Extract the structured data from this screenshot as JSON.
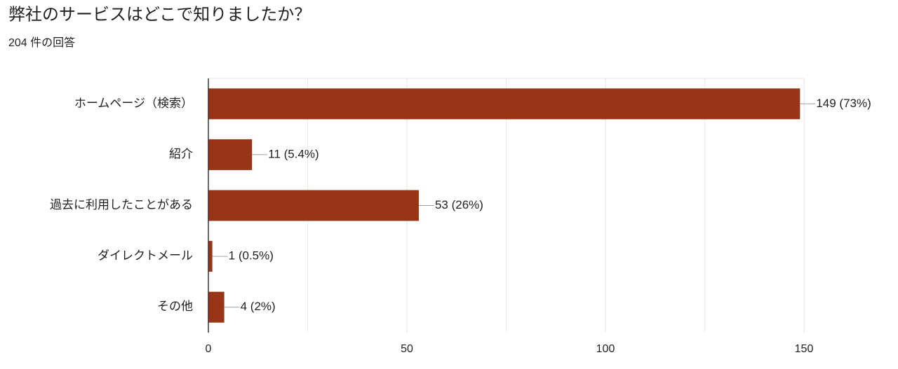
{
  "chart_data": {
    "type": "hbar",
    "title": "弊社のサービスはどこで知りましたか？",
    "subtitle": "204 件の回答",
    "categories": [
      "ホームページ（検索）",
      "紹介",
      "過去に利用したことがある",
      "ダイレクトメール",
      "その他"
    ],
    "values": [
      149,
      11,
      53,
      1,
      4
    ],
    "value_labels": [
      "149 (73%)",
      "11 (5.4%)",
      "53 (26%)",
      "1 (0.5%)",
      "4 (2%)"
    ],
    "color": "#993517",
    "xlim": [
      0,
      150
    ],
    "xticks": [
      0,
      50,
      100,
      150
    ],
    "minor_xticks": [
      25,
      75,
      125
    ],
    "grid": true
  }
}
